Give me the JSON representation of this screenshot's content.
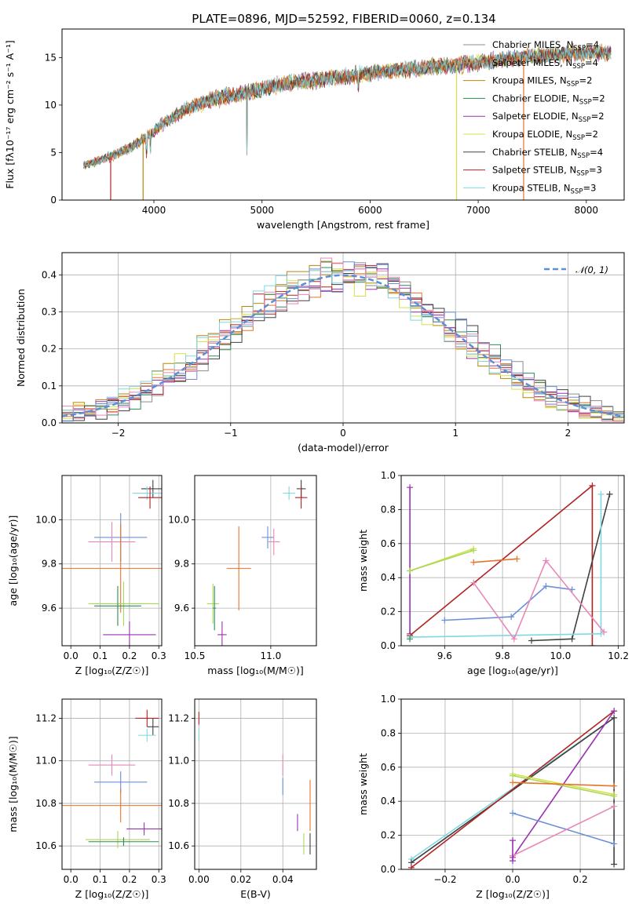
{
  "figure_title": "PLATE=0896, MJD=52592, FIBERID=0060, z=0.134",
  "colors": {
    "chabrier_miles": "#8c8c8c",
    "salpeter_miles": "#e8732a",
    "kroupa_miles": "#b8860b",
    "chabrier_elodie": "#2e8b57",
    "salpeter_elodie": "#9b30b0",
    "kroupa_elodie": "#d4e04a",
    "chabrier_stelib": "#404040",
    "salpeter_stelib": "#b22222",
    "kroupa_stelib": "#7fd8e0",
    "blue": "#6a8fd8",
    "pink": "#e888b8",
    "lime": "#a8d858",
    "normal": "#5b8fd8"
  },
  "chart_data": [
    {
      "id": "spectrum",
      "type": "line",
      "title": "PLATE=0896, MJD=52592, FIBERID=0060, z=0.134",
      "xlabel": "wavelength [Angstrom, rest frame]",
      "ylabel": "Flux [fλ10⁻¹⁷ erg cm⁻² s⁻¹ A⁻¹]",
      "xlim": [
        3150,
        8350
      ],
      "ylim": [
        0,
        18
      ],
      "xticks": [
        "4000",
        "5000",
        "6000",
        "7000",
        "8000"
      ],
      "yticks": [
        "0",
        "5",
        "10",
        "15"
      ],
      "grid": false,
      "legend_position": "top-right",
      "continuum": {
        "x": [
          3350,
          3500,
          3650,
          3800,
          3950,
          4100,
          4300,
          4500,
          4700,
          4900,
          5100,
          5300,
          5500,
          5700,
          5900,
          6100,
          6300,
          6500,
          6700,
          6900,
          7100,
          7300,
          7500,
          7700,
          7900,
          8100
        ],
        "y": [
          3.6,
          4.2,
          4.8,
          5.6,
          6.8,
          8.2,
          9.6,
          10.4,
          11.0,
          11.4,
          12.0,
          12.4,
          12.6,
          12.9,
          13.2,
          13.5,
          13.7,
          13.9,
          14.1,
          14.3,
          14.6,
          14.9,
          15.1,
          15.3,
          15.5,
          15.5
        ]
      },
      "series": [
        {
          "name": "Chabrier MILES, N_SSP=4",
          "color_key": "chabrier_miles"
        },
        {
          "name": "Salpeter MILES, N_SSP=4",
          "color_key": "salpeter_miles"
        },
        {
          "name": "Kroupa MILES, N_SSP=2",
          "color_key": "kroupa_miles"
        },
        {
          "name": "Chabrier ELODIE, N_SSP=2",
          "color_key": "chabrier_elodie"
        },
        {
          "name": "Salpeter ELODIE, N_SSP=2",
          "color_key": "salpeter_elodie"
        },
        {
          "name": "Kroupa ELODIE, N_SSP=2",
          "color_key": "kroupa_elodie"
        },
        {
          "name": "Chabrier STELIB, N_SSP=4",
          "color_key": "chabrier_stelib"
        },
        {
          "name": "Salpeter STELIB, N_SSP=3",
          "color_key": "salpeter_stelib"
        },
        {
          "name": "Kroupa STELIB, N_SSP=3",
          "color_key": "kroupa_stelib"
        }
      ],
      "drop_edges": [
        {
          "x": 3600,
          "color_key": "salpeter_stelib"
        },
        {
          "x": 3900,
          "color_key": "kroupa_miles"
        },
        {
          "x": 6800,
          "color_key": "kroupa_elodie"
        },
        {
          "x": 7420,
          "color_key": "salpeter_miles"
        }
      ]
    },
    {
      "id": "residuals",
      "type": "histogram",
      "xlabel": "(data-model)/error",
      "ylabel": "Normed distribution",
      "xlim": [
        -2.5,
        2.5
      ],
      "ylim": [
        0,
        0.46
      ],
      "xticks": [
        "−2",
        "−1",
        "0",
        "1",
        "2"
      ],
      "yticks": [
        "0.0",
        "0.1",
        "0.2",
        "0.3",
        "0.4"
      ],
      "grid": true,
      "legend_position": "top-right",
      "normal_label": "𝒩(0, 1)",
      "bin_width": 0.1,
      "series_colors": [
        "chabrier_miles",
        "salpeter_miles",
        "kroupa_miles",
        "chabrier_elodie",
        "salpeter_elodie",
        "kroupa_elodie",
        "chabrier_stelib",
        "salpeter_stelib",
        "kroupa_stelib",
        "blue",
        "pink"
      ]
    },
    {
      "id": "age_vs_z",
      "type": "errorbar",
      "xlabel": "Z [log₁₀(Z/Z☉)]",
      "ylabel": "age  [log₁₀(age/yr)]",
      "xlim": [
        -0.03,
        0.31
      ],
      "ylim": [
        9.43,
        10.2
      ],
      "xticks": [
        "0.0",
        "0.1",
        "0.2",
        "0.3"
      ],
      "yticks": [
        "9.6",
        "9.8",
        "10.0"
      ],
      "grid": true,
      "points": [
        {
          "x": 0.28,
          "y": 10.14,
          "xerr": 0.04,
          "yerr": 0.04,
          "color_key": "chabrier_stelib"
        },
        {
          "x": 0.26,
          "y": 10.12,
          "xerr": 0.05,
          "yerr": 0.03,
          "color_key": "kroupa_stelib"
        },
        {
          "x": 0.27,
          "y": 10.1,
          "xerr": 0.04,
          "yerr": 0.05,
          "color_key": "salpeter_stelib"
        },
        {
          "x": 0.17,
          "y": 9.92,
          "xerr": 0.09,
          "yerr": 0.11,
          "color_key": "blue"
        },
        {
          "x": 0.14,
          "y": 9.9,
          "xerr": 0.08,
          "yerr": 0.09,
          "color_key": "pink"
        },
        {
          "x": 0.17,
          "y": 9.78,
          "xerr": 0.2,
          "yerr": 0.2,
          "color_key": "salpeter_miles"
        },
        {
          "x": 0.18,
          "y": 9.62,
          "xerr": 0.12,
          "yerr": 0.1,
          "color_key": "lime"
        },
        {
          "x": 0.16,
          "y": 9.61,
          "xerr": 0.08,
          "yerr": 0.09,
          "color_key": "chabrier_elodie"
        },
        {
          "x": 0.2,
          "y": 9.48,
          "xerr": 0.09,
          "yerr": 0.06,
          "color_key": "salpeter_elodie"
        }
      ]
    },
    {
      "id": "age_vs_mass",
      "type": "errorbar",
      "xlabel": "mass [log₁₀(M/M☉)]",
      "ylabel": "",
      "xlim": [
        10.5,
        11.3
      ],
      "ylim": [
        9.43,
        10.2
      ],
      "xticks": [
        "10.5",
        "11.0"
      ],
      "yticks": [
        "9.6",
        "9.8",
        "10.0"
      ],
      "grid": true,
      "points": [
        {
          "x": 11.2,
          "y": 10.14,
          "xerr": 0.03,
          "yerr": 0.04,
          "color_key": "chabrier_stelib"
        },
        {
          "x": 11.12,
          "y": 10.12,
          "xerr": 0.04,
          "yerr": 0.03,
          "color_key": "kroupa_stelib"
        },
        {
          "x": 11.2,
          "y": 10.1,
          "xerr": 0.04,
          "yerr": 0.05,
          "color_key": "salpeter_stelib"
        },
        {
          "x": 10.98,
          "y": 9.92,
          "xerr": 0.04,
          "yerr": 0.05,
          "color_key": "blue"
        },
        {
          "x": 11.02,
          "y": 9.9,
          "xerr": 0.04,
          "yerr": 0.06,
          "color_key": "pink"
        },
        {
          "x": 10.79,
          "y": 9.78,
          "xerr": 0.08,
          "yerr": 0.19,
          "color_key": "salpeter_miles"
        },
        {
          "x": 10.62,
          "y": 9.62,
          "xerr": 0.04,
          "yerr": 0.09,
          "color_key": "lime"
        },
        {
          "x": 10.63,
          "y": 9.6,
          "xerr": 0.01,
          "yerr": 0.1,
          "color_key": "chabrier_elodie"
        },
        {
          "x": 10.68,
          "y": 9.48,
          "xerr": 0.03,
          "yerr": 0.06,
          "color_key": "salpeter_elodie"
        }
      ]
    },
    {
      "id": "weight_vs_age",
      "type": "line",
      "xlabel": "age  [log₁₀(age/yr)]",
      "ylabel": "mass weight",
      "xlim": [
        9.45,
        10.22
      ],
      "ylim": [
        0,
        1
      ],
      "xticks": [
        "9.6",
        "9.8",
        "10.0",
        "10.2"
      ],
      "yticks": [
        "0.0",
        "0.2",
        "0.4",
        "0.6",
        "0.8",
        "1.0"
      ],
      "grid": true,
      "series": [
        {
          "color_key": "salpeter_elodie",
          "x": [
            9.48,
            9.48
          ],
          "y": [
            0.93,
            0.07
          ]
        },
        {
          "color_key": "salpeter_stelib",
          "x": [
            9.48,
            10.11,
            10.11
          ],
          "y": [
            0.06,
            0.94,
            0.0
          ]
        },
        {
          "color_key": "chabrier_stelib",
          "x": [
            9.9,
            10.04,
            10.17
          ],
          "y": [
            0.03,
            0.04,
            0.89
          ]
        },
        {
          "color_key": "kroupa_stelib",
          "x": [
            9.48,
            10.14,
            10.14
          ],
          "y": [
            0.05,
            0.07,
            0.89
          ]
        },
        {
          "color_key": "kroupa_elodie",
          "x": [
            9.48,
            9.7
          ],
          "y": [
            0.44,
            0.57
          ]
        },
        {
          "color_key": "lime",
          "x": [
            9.48,
            9.7
          ],
          "y": [
            0.44,
            0.56
          ]
        },
        {
          "color_key": "salpeter_miles",
          "x": [
            9.7,
            9.85
          ],
          "y": [
            0.49,
            0.51
          ]
        },
        {
          "color_key": "blue",
          "x": [
            9.6,
            9.83,
            9.95,
            10.04
          ],
          "y": [
            0.15,
            0.17,
            0.35,
            0.33
          ]
        },
        {
          "color_key": "pink",
          "x": [
            9.7,
            9.84,
            9.95,
            10.15
          ],
          "y": [
            0.37,
            0.04,
            0.5,
            0.08
          ]
        },
        {
          "color_key": "chabrier_elodie",
          "x": [
            9.48
          ],
          "y": [
            0.04
          ]
        }
      ]
    },
    {
      "id": "mass_vs_z",
      "type": "errorbar",
      "xlabel": "Z [log₁₀(Z/Z☉)]",
      "ylabel": "mass [log₁₀(M/M☉)]",
      "xlim": [
        -0.03,
        0.31
      ],
      "ylim": [
        10.49,
        11.29
      ],
      "xticks": [
        "0.0",
        "0.1",
        "0.2",
        "0.3"
      ],
      "yticks": [
        "10.6",
        "10.8",
        "11.0",
        "11.2"
      ],
      "grid": true,
      "points": [
        {
          "x": 0.26,
          "y": 11.2,
          "xerr": 0.04,
          "yerr": 0.04,
          "color_key": "salpeter_stelib"
        },
        {
          "x": 0.28,
          "y": 11.16,
          "xerr": 0.02,
          "yerr": 0.04,
          "color_key": "chabrier_stelib"
        },
        {
          "x": 0.26,
          "y": 11.12,
          "xerr": 0.03,
          "yerr": 0.03,
          "color_key": "kroupa_stelib"
        },
        {
          "x": 0.14,
          "y": 10.98,
          "xerr": 0.08,
          "yerr": 0.05,
          "color_key": "pink"
        },
        {
          "x": 0.17,
          "y": 10.9,
          "xerr": 0.09,
          "yerr": 0.05,
          "color_key": "blue"
        },
        {
          "x": 0.17,
          "y": 10.79,
          "xerr": 0.2,
          "yerr": 0.08,
          "color_key": "salpeter_miles"
        },
        {
          "x": 0.25,
          "y": 10.68,
          "xerr": 0.06,
          "yerr": 0.03,
          "color_key": "salpeter_elodie"
        },
        {
          "x": 0.16,
          "y": 10.63,
          "xerr": 0.11,
          "yerr": 0.04,
          "color_key": "lime"
        },
        {
          "x": 0.18,
          "y": 10.62,
          "xerr": 0.12,
          "yerr": 0.02,
          "color_key": "chabrier_elodie"
        }
      ]
    },
    {
      "id": "mass_vs_ebv",
      "type": "errorbar",
      "xlabel": "E(B-V)",
      "ylabel": "",
      "xlim": [
        -0.002,
        0.056
      ],
      "ylim": [
        10.49,
        11.29
      ],
      "xticks": [
        "0.00",
        "0.02",
        "0.04"
      ],
      "yticks": [
        "10.6",
        "10.8",
        "11.0",
        "11.2"
      ],
      "grid": true,
      "points": [
        {
          "x": 0.0,
          "y": 11.2,
          "xerr": 0,
          "yerr": 0.03,
          "color_key": "salpeter_stelib"
        },
        {
          "x": 0.0,
          "y": 11.12,
          "xerr": 0,
          "yerr": 0.03,
          "color_key": "kroupa_stelib"
        },
        {
          "x": 0.04,
          "y": 10.98,
          "xerr": 0,
          "yerr": 0.05,
          "color_key": "pink"
        },
        {
          "x": 0.04,
          "y": 10.88,
          "xerr": 0,
          "yerr": 0.04,
          "color_key": "blue"
        },
        {
          "x": 0.053,
          "y": 10.79,
          "xerr": 0,
          "yerr": 0.12,
          "color_key": "salpeter_miles"
        },
        {
          "x": 0.047,
          "y": 10.71,
          "xerr": 0,
          "yerr": 0.04,
          "color_key": "salpeter_elodie"
        },
        {
          "x": 0.05,
          "y": 10.61,
          "xerr": 0,
          "yerr": 0.05,
          "color_key": "lime"
        },
        {
          "x": 0.053,
          "y": 10.61,
          "xerr": 0,
          "yerr": 0.05,
          "color_key": "chabrier_stelib"
        }
      ]
    },
    {
      "id": "weight_vs_z",
      "type": "line",
      "xlabel": "Z [log₁₀(Z/Z☉)]",
      "ylabel": "mass weight",
      "xlim": [
        -0.33,
        0.33
      ],
      "ylim": [
        0,
        1
      ],
      "xticks": [
        "−0.2",
        "0.0",
        "0.2"
      ],
      "yticks": [
        "0.0",
        "0.2",
        "0.4",
        "0.6",
        "0.8",
        "1.0"
      ],
      "grid": true,
      "series": [
        {
          "color_key": "kroupa_stelib",
          "x": [
            -0.3,
            0.3
          ],
          "y": [
            0.06,
            0.89
          ]
        },
        {
          "color_key": "chabrier_stelib",
          "x": [
            -0.3,
            0.3,
            0.3
          ],
          "y": [
            0.04,
            0.89,
            0.03
          ]
        },
        {
          "color_key": "salpeter_stelib",
          "x": [
            -0.3,
            0.3
          ],
          "y": [
            0.01,
            0.93
          ]
        },
        {
          "color_key": "salpeter_elodie",
          "x": [
            0.0,
            0.3
          ],
          "y": [
            0.07,
            0.93
          ]
        },
        {
          "color_key": "kroupa_elodie",
          "x": [
            0.0,
            0.3
          ],
          "y": [
            0.56,
            0.44
          ]
        },
        {
          "color_key": "lime",
          "x": [
            0.0,
            0.3
          ],
          "y": [
            0.55,
            0.43
          ]
        },
        {
          "color_key": "salpeter_miles",
          "x": [
            0.0,
            0.3
          ],
          "y": [
            0.51,
            0.49
          ]
        },
        {
          "color_key": "blue",
          "x": [
            0.0,
            0.3
          ],
          "y": [
            0.33,
            0.15
          ]
        },
        {
          "color_key": "pink",
          "x": [
            0.0,
            0.3
          ],
          "y": [
            0.08,
            0.37
          ]
        },
        {
          "color_key": "salpeter_elodie",
          "x": [
            0.0,
            0.0
          ],
          "y": [
            0.17,
            0.05
          ]
        }
      ]
    }
  ]
}
